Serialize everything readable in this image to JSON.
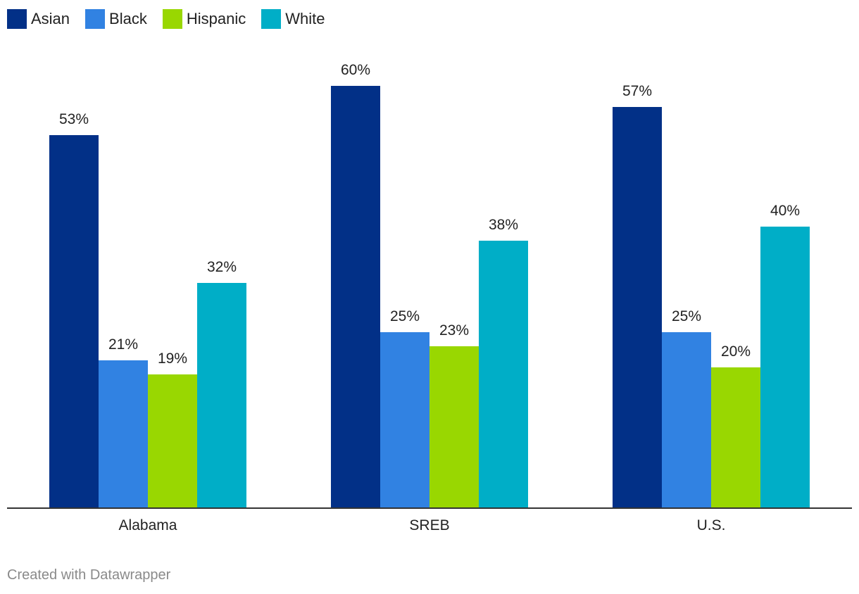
{
  "chart_data": {
    "type": "bar",
    "categories": [
      "Alabama",
      "SREB",
      "U.S."
    ],
    "series": [
      {
        "name": "Asian",
        "color": "#023087",
        "values": [
          53,
          60,
          57
        ],
        "labels": [
          "53%",
          "60%",
          "57%"
        ]
      },
      {
        "name": "Black",
        "color": "#3182e2",
        "values": [
          21,
          25,
          25
        ],
        "labels": [
          "21%",
          "25%",
          "25%"
        ]
      },
      {
        "name": "Hispanic",
        "color": "#99d701",
        "values": [
          19,
          23,
          20
        ],
        "labels": [
          "19%",
          "23%",
          "20%"
        ]
      },
      {
        "name": "White",
        "color": "#00aec7",
        "values": [
          32,
          38,
          40
        ],
        "labels": [
          "32%",
          "38%",
          "40%"
        ]
      }
    ],
    "ylim": [
      0,
      60
    ],
    "grid": false,
    "legend": "top-left"
  },
  "footer": {
    "credit": "Created with Datawrapper"
  }
}
